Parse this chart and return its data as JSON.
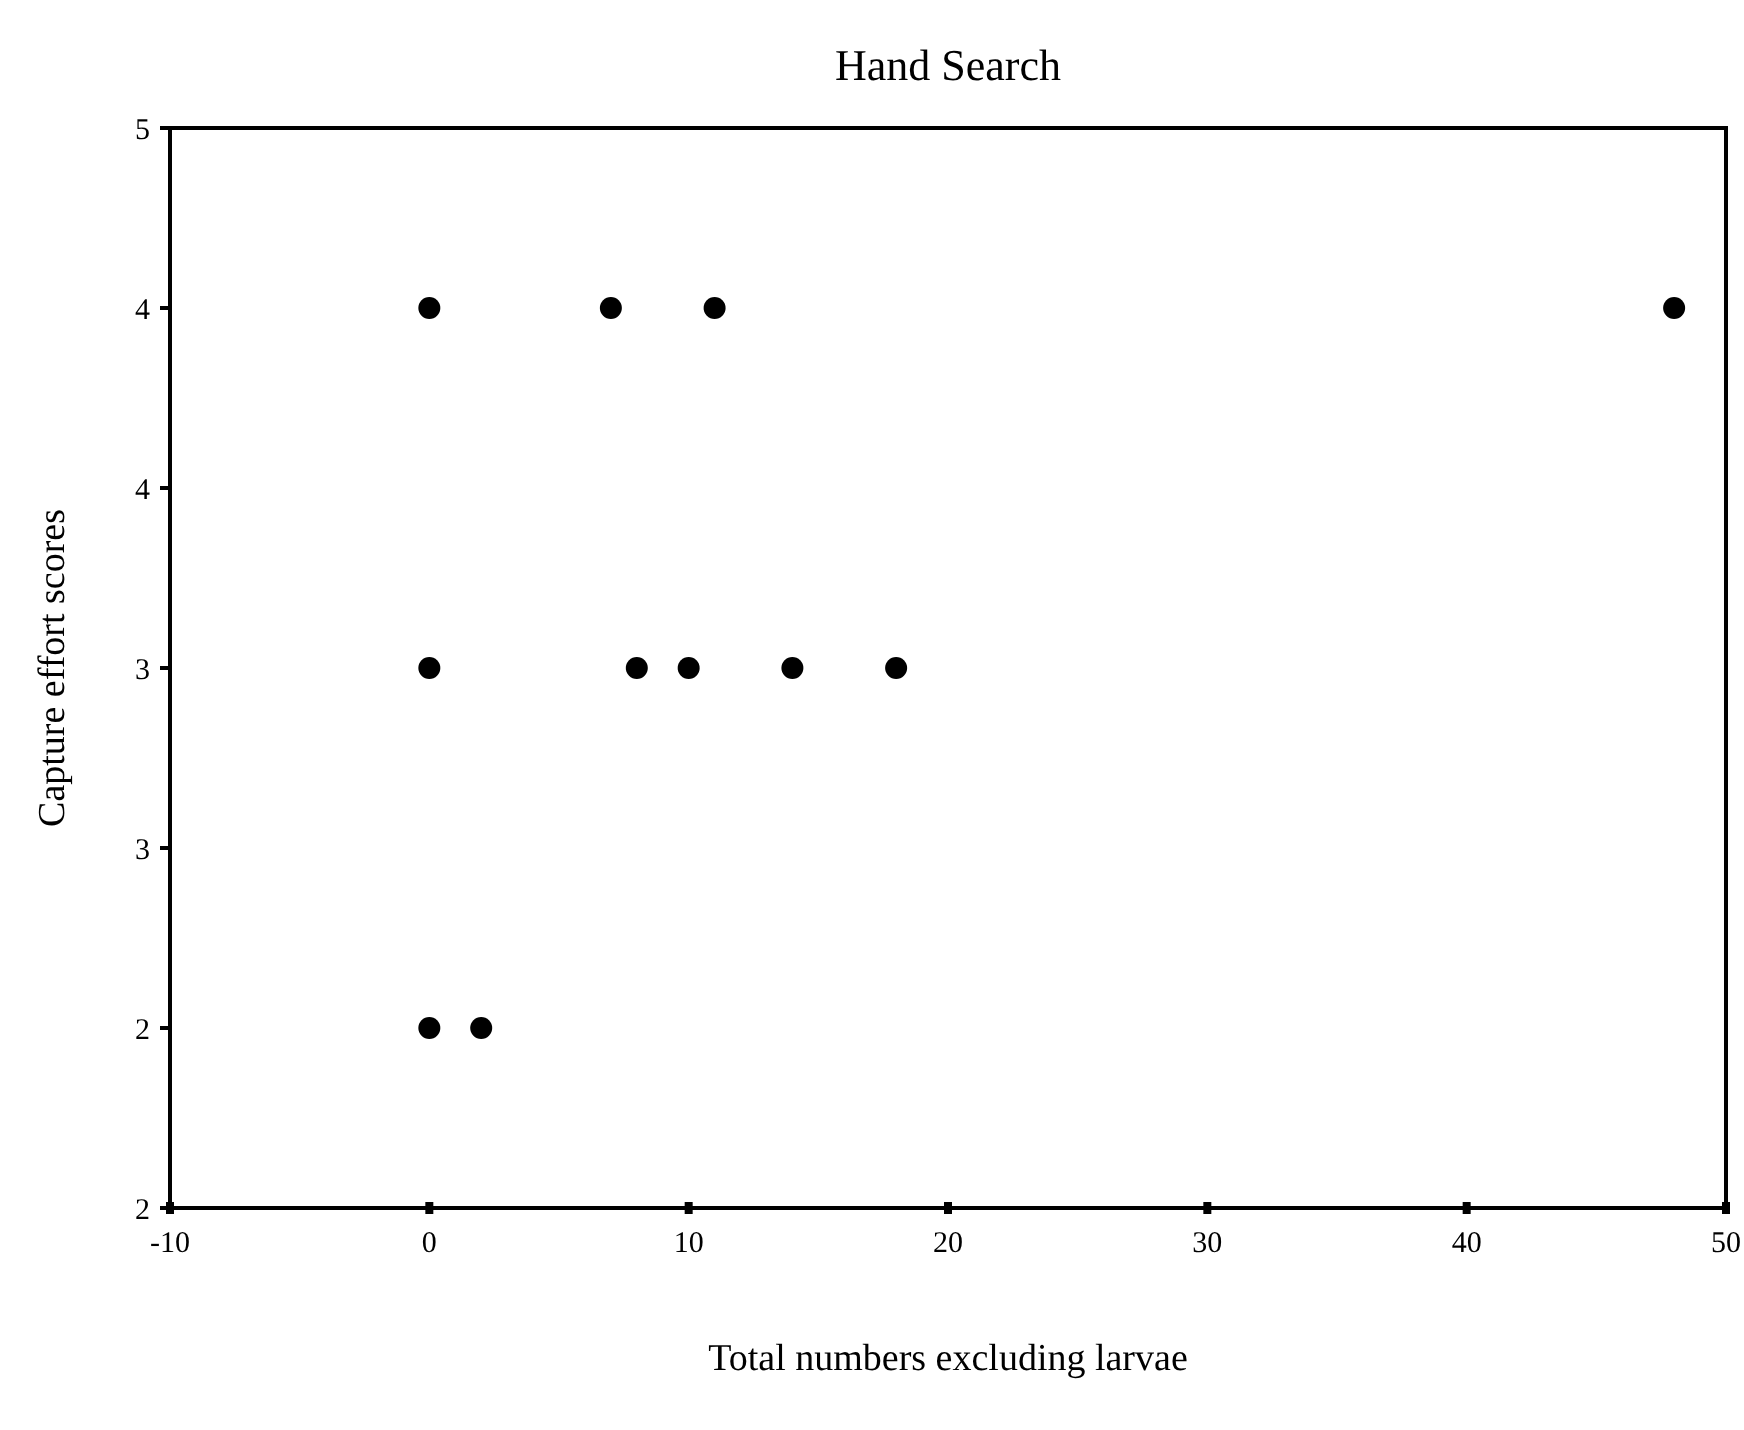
{
  "chart_data": {
    "type": "scatter",
    "title": "Hand Search",
    "xlabel": "Total numbers excluding larvae",
    "ylabel": "Capture effort scores",
    "xlim": [
      -10,
      50
    ],
    "xticks": [
      -10,
      0,
      10,
      20,
      30,
      40,
      50
    ],
    "ylim": [
      2,
      5
    ],
    "yticks": [
      {
        "value": 2,
        "label": "2"
      },
      {
        "value": 2.5,
        "label": "2"
      },
      {
        "value": 3,
        "label": "3"
      },
      {
        "value": 3.5,
        "label": "3"
      },
      {
        "value": 4,
        "label": "4"
      },
      {
        "value": 4.5,
        "label": "4"
      },
      {
        "value": 5,
        "label": "5"
      }
    ],
    "series": [
      {
        "color": "#000000",
        "x": [
          0,
          7,
          11,
          48,
          0,
          8,
          10,
          14,
          18,
          0,
          2
        ],
        "values": [
          4.5,
          4.5,
          4.5,
          4.5,
          3.5,
          3.5,
          3.5,
          3.5,
          3.5,
          2.5,
          2.5
        ]
      }
    ],
    "marker": "circle",
    "grid": false
  }
}
